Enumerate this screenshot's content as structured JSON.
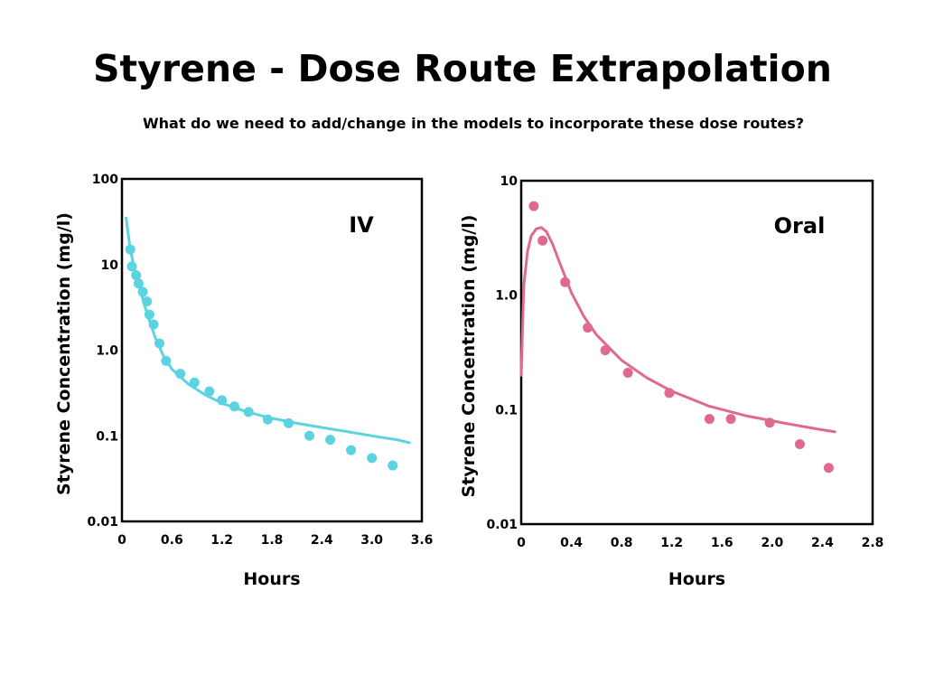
{
  "slide": {
    "title": "Styrene - Dose Route Extrapolation",
    "subtitle": "What do we need to add/change in the models to incorporate these dose routes?"
  },
  "chart_data": [
    {
      "type": "scatter",
      "panel_label": "IV",
      "xlabel": "Hours",
      "ylabel": "Styrene Concentration (mg/l)",
      "xlim": [
        0,
        3.6
      ],
      "ylim": [
        0.01,
        100
      ],
      "yscale": "log",
      "x_ticks": [
        "0",
        "0.6",
        "1.2",
        "1.8",
        "2.4",
        "3.0",
        "3.6"
      ],
      "y_ticks": [
        "100",
        "10",
        "1.0",
        "0.1",
        "0.01"
      ],
      "color": "#5bd3e0",
      "grid": false,
      "series": [
        {
          "kind": "points",
          "x": [
            0.1,
            0.12,
            0.17,
            0.2,
            0.25,
            0.3,
            0.33,
            0.38,
            0.45,
            0.53,
            0.7,
            0.87,
            1.05,
            1.2,
            1.35,
            1.52,
            1.75,
            2.0,
            2.25,
            2.5,
            2.75,
            3.0,
            3.25
          ],
          "y": [
            15,
            9.5,
            7.5,
            6.0,
            4.8,
            3.7,
            2.6,
            2.0,
            1.2,
            0.75,
            0.53,
            0.42,
            0.33,
            0.26,
            0.22,
            0.19,
            0.155,
            0.14,
            0.1,
            0.09,
            0.068,
            0.055,
            0.045
          ]
        },
        {
          "kind": "line",
          "x": [
            0.05,
            0.1,
            0.15,
            0.2,
            0.3,
            0.4,
            0.5,
            0.6,
            0.8,
            1.0,
            1.2,
            1.5,
            1.8,
            2.1,
            2.4,
            2.7,
            3.0,
            3.3,
            3.45
          ],
          "y": [
            35,
            15,
            9.0,
            5.8,
            2.7,
            1.4,
            0.85,
            0.6,
            0.4,
            0.3,
            0.24,
            0.19,
            0.16,
            0.14,
            0.125,
            0.112,
            0.1,
            0.09,
            0.083
          ]
        }
      ]
    },
    {
      "type": "scatter",
      "panel_label": "Oral",
      "xlabel": "Hours",
      "ylabel": "Styrene Concentration (mg/l)",
      "xlim": [
        0,
        2.8
      ],
      "ylim": [
        0.01,
        10
      ],
      "yscale": "log",
      "x_ticks": [
        "0",
        "0.4",
        "0.8",
        "1.2",
        "1.6",
        "2.0",
        "2.4",
        "2.8"
      ],
      "y_ticks": [
        "10",
        "1.0",
        "0.1",
        "0.01"
      ],
      "color": "#e06a8c",
      "grid": false,
      "series": [
        {
          "kind": "points",
          "x": [
            0.1,
            0.17,
            0.35,
            0.53,
            0.67,
            0.85,
            1.18,
            1.5,
            1.67,
            1.98,
            2.22,
            2.45
          ],
          "y": [
            6.0,
            3.0,
            1.3,
            0.52,
            0.33,
            0.21,
            0.14,
            0.083,
            0.083,
            0.077,
            0.05,
            0.031
          ]
        },
        {
          "kind": "line",
          "x": [
            0.0,
            0.02,
            0.05,
            0.08,
            0.12,
            0.16,
            0.2,
            0.25,
            0.3,
            0.4,
            0.5,
            0.6,
            0.8,
            1.0,
            1.2,
            1.5,
            1.8,
            2.1,
            2.35,
            2.5
          ],
          "y": [
            0.2,
            1.2,
            2.4,
            3.3,
            3.8,
            3.9,
            3.6,
            2.8,
            2.0,
            1.05,
            0.65,
            0.45,
            0.27,
            0.19,
            0.145,
            0.107,
            0.088,
            0.076,
            0.068,
            0.064
          ]
        }
      ]
    }
  ]
}
